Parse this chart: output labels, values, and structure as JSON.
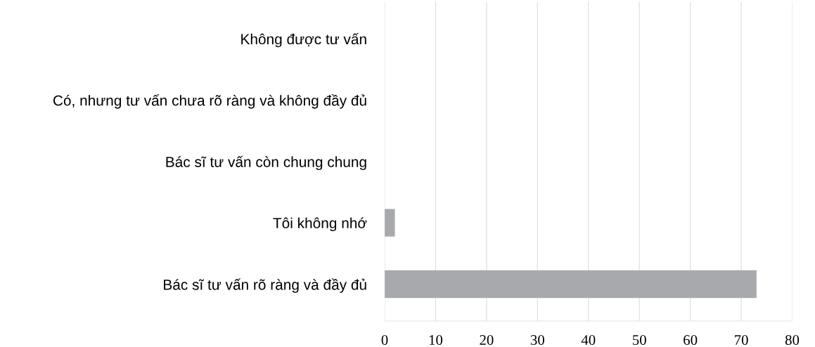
{
  "chart_data": {
    "type": "bar",
    "orientation": "horizontal",
    "categories": [
      "Không được tư vấn",
      "Có, nhưng tư vấn chưa rõ ràng và không đầy đủ",
      "Bác sĩ tư vấn còn chung chung",
      "Tôi không nhớ",
      "Bác sĩ tư vấn rõ ràng và đầy đủ"
    ],
    "values": [
      0,
      0,
      0,
      2,
      73
    ],
    "color": "#a7a9ad",
    "xlim": [
      0,
      80
    ],
    "xticks": [
      0,
      10,
      20,
      30,
      40,
      50,
      60,
      70,
      80
    ],
    "grid": "x"
  }
}
